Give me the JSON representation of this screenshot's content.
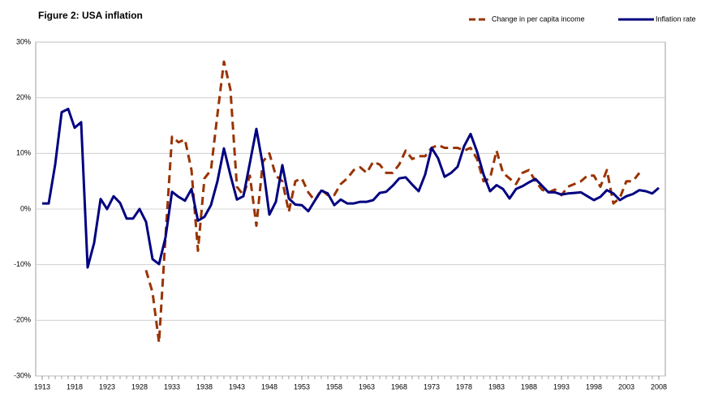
{
  "chart_data": {
    "type": "line",
    "title": "Figure 2:  USA inflation",
    "x": [
      1913,
      1914,
      1915,
      1916,
      1917,
      1918,
      1919,
      1920,
      1921,
      1922,
      1923,
      1924,
      1925,
      1926,
      1927,
      1928,
      1929,
      1930,
      1931,
      1932,
      1933,
      1934,
      1935,
      1936,
      1937,
      1938,
      1939,
      1940,
      1941,
      1942,
      1943,
      1944,
      1945,
      1946,
      1947,
      1948,
      1949,
      1950,
      1951,
      1952,
      1953,
      1954,
      1955,
      1956,
      1957,
      1958,
      1959,
      1960,
      1961,
      1962,
      1963,
      1964,
      1965,
      1966,
      1967,
      1968,
      1969,
      1970,
      1971,
      1972,
      1973,
      1974,
      1975,
      1976,
      1977,
      1978,
      1979,
      1980,
      1981,
      1982,
      1983,
      1984,
      1985,
      1986,
      1987,
      1988,
      1989,
      1990,
      1991,
      1992,
      1993,
      1994,
      1995,
      1996,
      1997,
      1998,
      1999,
      2000,
      2001,
      2002,
      2003,
      2004,
      2005,
      2006,
      2007,
      2008
    ],
    "series": [
      {
        "name": "Change in per capita income",
        "color": "#993300",
        "dashed": true,
        "values": [
          null,
          null,
          null,
          null,
          null,
          null,
          null,
          null,
          null,
          null,
          null,
          null,
          null,
          null,
          null,
          null,
          -11,
          -15,
          -24,
          -5,
          13,
          12,
          12.5,
          7,
          -7.5,
          5.5,
          7,
          17,
          26.5,
          21.5,
          4,
          2.5,
          6,
          -3,
          8.5,
          10,
          6,
          5,
          -0.5,
          5,
          5.5,
          3,
          1.5,
          3.5,
          2.5,
          2.5,
          4.5,
          5.5,
          7,
          7.5,
          6.5,
          8.5,
          8,
          6.5,
          6.5,
          8,
          10.5,
          9,
          9.5,
          9.5,
          11,
          11.5,
          11,
          11,
          11,
          10.5,
          11,
          9,
          5,
          5.5,
          10.5,
          6.5,
          5.5,
          4.5,
          6.5,
          7,
          5,
          3.5,
          3,
          3.5,
          2.5,
          4,
          4.5,
          5,
          6,
          6,
          4,
          7,
          1,
          2,
          5,
          5,
          6.5,
          null,
          null,
          null
        ]
      },
      {
        "name": "Inflation rate",
        "color": "#000080",
        "dashed": false,
        "values": [
          1,
          1,
          8,
          17.4,
          18,
          14.6,
          15.6,
          -10.5,
          -6.1,
          1.8,
          0,
          2.3,
          1.1,
          -1.7,
          -1.7,
          0,
          -2.3,
          -9,
          -9.9,
          -5.1,
          3.1,
          2.2,
          1.5,
          3.6,
          -2.1,
          -1.4,
          0.7,
          5,
          10.9,
          6.1,
          1.7,
          2.3,
          8.3,
          14.4,
          7.8,
          -1,
          1.3,
          7.9,
          1.9,
          0.8,
          0.7,
          -0.4,
          1.5,
          3.3,
          2.8,
          0.7,
          1.7,
          1,
          1,
          1.3,
          1.3,
          1.6,
          2.9,
          3.1,
          4.2,
          5.5,
          5.7,
          4.4,
          3.2,
          6.2,
          11,
          9.1,
          5.8,
          6.5,
          7.6,
          11.3,
          13.5,
          10.3,
          6.2,
          3.2,
          4.3,
          3.6,
          1.9,
          3.6,
          4.1,
          4.8,
          5.4,
          4.2,
          3,
          3,
          2.6,
          2.8,
          2.9,
          3,
          2.3,
          1.6,
          2.2,
          3.4,
          2.8,
          1.6,
          2.3,
          2.7,
          3.4,
          3.2,
          2.8,
          3.8
        ]
      }
    ],
    "xlim": [
      1912,
      2009
    ],
    "xticks": [
      1913,
      1918,
      1923,
      1928,
      1933,
      1938,
      1943,
      1948,
      1953,
      1958,
      1963,
      1968,
      1973,
      1978,
      1983,
      1988,
      1993,
      1998,
      2003,
      2008
    ],
    "ylim": [
      -30,
      30
    ],
    "yticks": [
      {
        "value": -30,
        "label": "-30%"
      },
      {
        "value": -20,
        "label": "-20%"
      },
      {
        "value": -10,
        "label": "-10%"
      },
      {
        "value": 0,
        "label": "0%"
      },
      {
        "value": 10,
        "label": "10%"
      },
      {
        "value": 20,
        "label": "20%"
      },
      {
        "value": 30,
        "label": "30%"
      }
    ],
    "grid": true
  }
}
